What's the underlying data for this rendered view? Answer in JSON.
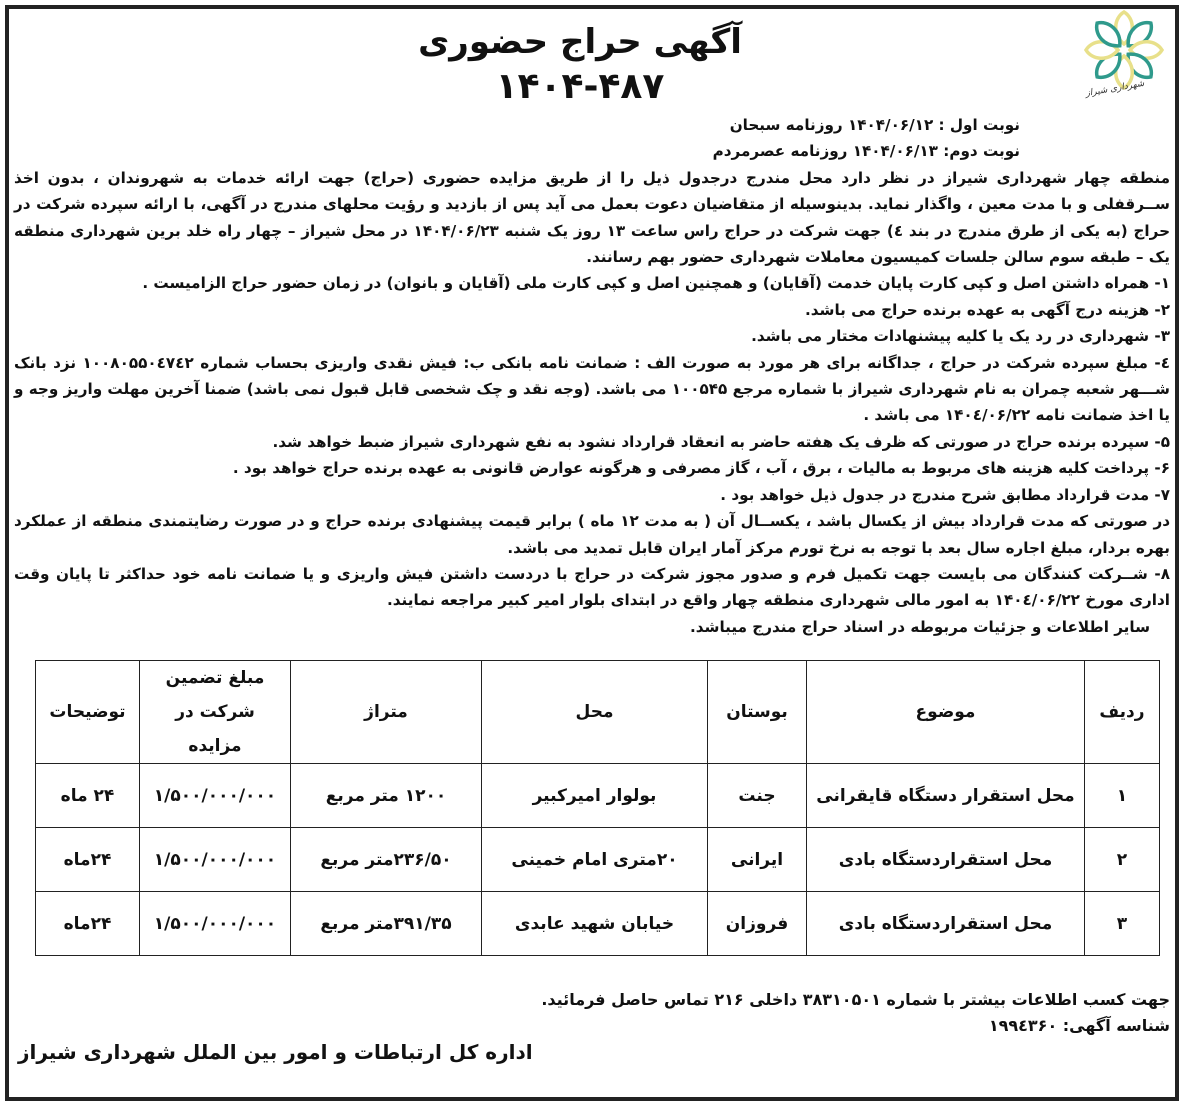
{
  "header": {
    "title": "آگهی حراج حضوری",
    "number": "۱۴۰۴-۴۸۷",
    "logo_text": "شهرداری شیراز",
    "logo_colors": [
      "#2f9a8c",
      "#e8e08a"
    ]
  },
  "publication": {
    "first": "نوبت اول : ۱۴۰۴/۰۶/۱۲ روزنامه سبحان",
    "second": "نوبت دوم: ۱۴۰۴/۰۶/۱۳ روزنامه عصرمردم"
  },
  "intro": "منطقه چهار شهرداری شیراز در نظر دارد محل مندرج درجدول ذیل را از طریق مزایده حضوری (حراج) جهت ارائه خدمات به شهروندان ، بدون اخذ ســرقفلی و با مدت معین ، واگذار نماید. بدینوسیله از متقاضیان دعوت بعمل می آید پس از بازدید و رؤیت محلهای مندرج در آگهی، با ارائه سپرده شرکت در حراج (به یکی از طرق مندرج در بند ٤) جهت شرکت در حراج راس ساعت ۱۳ روز یک شنبه ۱۴۰۴/۰۶/۲۳ در محل شیراز – چهار راه خلد برین شهرداری منطقه یک – طبقه سوم سالن جلسات کمیسیون معاملات شهرداری حضور بهم رسانند.",
  "clauses": [
    "۱- همراه داشتن اصل و کپی کارت پایان خدمت (آقایان) و همچنین اصل و کپی کارت ملی (آقایان و بانوان) در زمان حضور حراج الزامیست .",
    "۲- هزینه درج آگهی به عهده برنده حراج می باشد.",
    "۳- شهرداری در رد یک یا کلیه پیشنهادات مختار می باشد.",
    "٤- مبلغ سپرده شرکت در حراج ، جداگانه برای هر مورد به صورت الف : ضمانت نامه بانکی ب: فیش نقدی واریزی بحساب شماره ۱۰۰۸۰۵۵۰٤۷٤۲ نزد بانک شـــهر شعبه چمران به نام شهرداری شیراز با شماره مرجع ۱۰۰۵۴۵ می باشد. (وجه نقد و چک شخصی قابل قبول نمی باشد) ضمنا آخرین مهلت واریز وجه و یا اخذ ضمانت نامه ۱۴۰٤/۰۶/۲۲ می باشد .",
    "۵- سپرده برنده حراج در صورتی که ظرف یک هفته حاضر به انعقاد قرارداد نشود به نفع شهرداری شیراز ضبط خواهد شد.",
    "۶- پرداخت کلیه هزینه های مربوط به مالیات ، برق ، آب ، گاز مصرفی و هرگونه عوارض قانونی به عهده برنده حراج خواهد بود .",
    "۷- مدت قرارداد مطابق شرح مندرج در جدول ذیل خواهد بود .",
    "در صورتی که مدت قرارداد بیش از یکسال باشد ، یکســال آن ( به مدت ۱۲ ماه ) برابر قیمت پیشنهادی برنده حراج و در صورت رضایتمندی منطقه از عملکرد بهره بردار، مبلغ اجاره سال بعد با توجه به نرخ تورم مرکز آمار ایران قابل تمدید می باشد.",
    "۸- شــرکت کنندگان می بایست جهت تکمیل فرم و صدور مجوز شرکت در حراج با دردست داشتن فیش واریزی و یا ضمانت نامه خود حداکثر تا پایان وقت اداری مورخ ۱۴۰٤/۰۶/۲۲ به امور مالی شهرداری منطقه چهار واقع در ابتدای بلوار امیر کبیر مراجعه نمایند.",
    "سایر اطلاعات و جزئیات مربوطه در اسناد حراج مندرج میباشد."
  ],
  "table": {
    "headers": [
      "ردیف",
      "موضوع",
      "بوستان",
      "محل",
      "متراژ",
      "مبلغ تضمین شرکت در مزایده",
      "توضیحات"
    ],
    "rows": [
      [
        "۱",
        "محل استقرار دستگاه قایقرانی",
        "جنت",
        "بولوار امیرکبیر",
        "۱۲۰۰ متر مربع",
        "۱/۵۰۰/۰۰۰/۰۰۰",
        "۲۴ ماه"
      ],
      [
        "۲",
        "محل استقراردستگاه بادی",
        "ایرانی",
        "۲۰متری امام خمینی",
        "۲۳۶/۵۰متر مربع",
        "۱/۵۰۰/۰۰۰/۰۰۰",
        "۲۴ماه"
      ],
      [
        "۳",
        "محل استقراردستگاه بادی",
        "فروزان",
        "خیابان شهید عابدی",
        "۳۹۱/۳۵متر مربع",
        "۱/۵۰۰/۰۰۰/۰۰۰",
        "۲۴ماه"
      ]
    ]
  },
  "footer": {
    "contact": "جهت کسب اطلاعات بیشتر با شماره ۳۸۳۱۰۵۰۱ داخلی ۲۱۶ تماس حاصل فرمائید.",
    "ad_id": "شناسه آگهی: ۱۹۹٤۳۶۰",
    "department": "اداره کل ارتباطات و امور بین الملل شهرداری شیراز"
  }
}
